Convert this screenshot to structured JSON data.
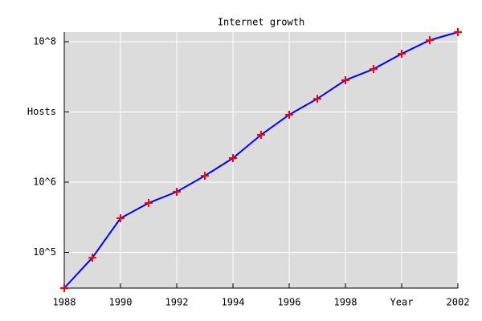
{
  "chart_data": {
    "type": "line",
    "title": "Internet growth",
    "x": [
      1988,
      1989,
      1990,
      1991,
      1992,
      1993,
      1994,
      1995,
      1996,
      1997,
      1998,
      1999,
      2000,
      2001,
      2002
    ],
    "series": [
      {
        "color": "#0000ff",
        "marker_color": "#ff0000",
        "values": [
          31000,
          84000,
          306000,
          505000,
          729000,
          1230000,
          2200000,
          4720000,
          9120000,
          15400000,
          28300000,
          40800000,
          67400000,
          105000000,
          137000000
        ]
      }
    ],
    "xlim": [
      1988,
      2002
    ],
    "xticks": [
      1988,
      1990,
      1992,
      1994,
      1996,
      1998,
      {
        "value": 2000,
        "label": "Year"
      },
      2002
    ],
    "ylim": [
      31000,
      137000000
    ],
    "log_y": true,
    "yticks": [
      {
        "value": 100000,
        "label": "10^5"
      },
      {
        "value": 1000000,
        "label": "10^6"
      },
      {
        "value": 10000000,
        "label": "Hosts"
      },
      {
        "value": 100000000,
        "label": "10^8"
      }
    ],
    "grid": true
  }
}
